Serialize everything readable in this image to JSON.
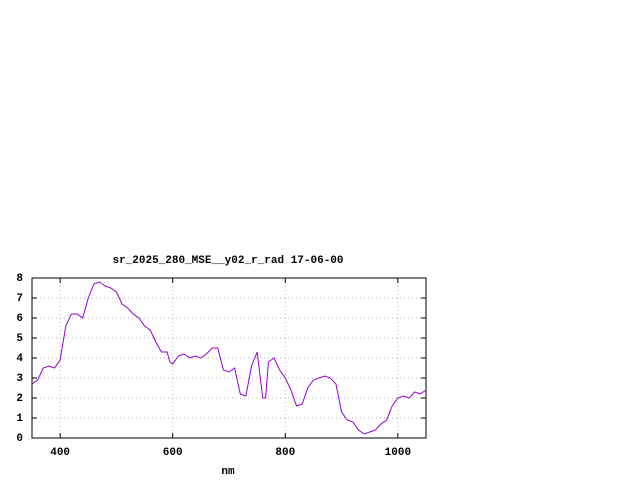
{
  "chart_data": {
    "type": "line",
    "title": "sr_2025_280_MSE__y02_r_rad 17-06-00",
    "x_label": "nm",
    "xlim": [
      350,
      1050
    ],
    "xticks": [
      400,
      600,
      800,
      1000
    ],
    "ylim": [
      0,
      8
    ],
    "yticks": [
      0,
      1,
      2,
      3,
      4,
      5,
      6,
      7,
      8
    ],
    "grid": true,
    "color": "#9400d3",
    "x": [
      350,
      360,
      370,
      380,
      390,
      400,
      410,
      420,
      430,
      440,
      450,
      460,
      470,
      480,
      490,
      500,
      510,
      520,
      530,
      540,
      550,
      560,
      570,
      580,
      590,
      595,
      600,
      610,
      620,
      630,
      640,
      650,
      660,
      670,
      680,
      690,
      700,
      710,
      720,
      730,
      740,
      750,
      760,
      765,
      770,
      780,
      790,
      800,
      810,
      820,
      830,
      840,
      850,
      860,
      870,
      880,
      890,
      900,
      910,
      920,
      930,
      940,
      950,
      960,
      970,
      980,
      990,
      1000,
      1010,
      1020,
      1030,
      1040,
      1050
    ],
    "values": [
      2.7,
      2.9,
      3.5,
      3.6,
      3.5,
      3.9,
      5.6,
      6.2,
      6.2,
      6.0,
      7.0,
      7.7,
      7.8,
      7.6,
      7.5,
      7.3,
      6.7,
      6.5,
      6.2,
      6.0,
      5.6,
      5.4,
      4.8,
      4.3,
      4.3,
      3.8,
      3.7,
      4.1,
      4.2,
      4.0,
      4.1,
      4.0,
      4.2,
      4.5,
      4.5,
      3.4,
      3.3,
      3.5,
      2.2,
      2.1,
      3.6,
      4.3,
      2.0,
      2.0,
      3.8,
      4.0,
      3.4,
      3.0,
      2.4,
      1.6,
      1.7,
      2.5,
      2.9,
      3.0,
      3.1,
      3.0,
      2.7,
      1.3,
      0.9,
      0.8,
      0.4,
      0.2,
      0.3,
      0.4,
      0.7,
      0.9,
      1.6,
      2.0,
      2.1,
      2.0,
      2.3,
      2.2,
      2.4
    ]
  }
}
